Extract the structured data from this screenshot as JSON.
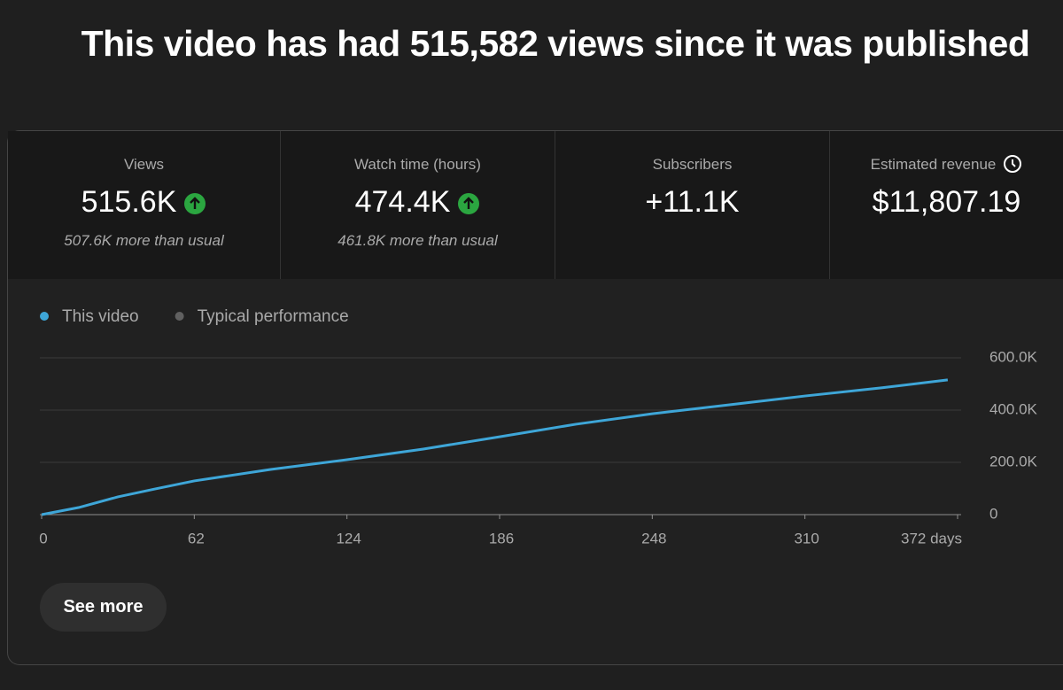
{
  "header": {
    "title": "This video has had 515,582 views since it was published"
  },
  "metrics": [
    {
      "label": "Views",
      "value": "515.6K",
      "note": "507.6K more than usual"
    },
    {
      "label": "Watch time (hours)",
      "value": "474.4K",
      "note": "461.8K more than usual"
    },
    {
      "label": "Subscribers",
      "value": "+11.1K"
    },
    {
      "label": "Estimated revenue",
      "value": "$11,807.19"
    }
  ],
  "chart_data": {
    "type": "line",
    "x": [
      0,
      15,
      31,
      46,
      62,
      93,
      124,
      155,
      186,
      217,
      248,
      279,
      310,
      341,
      368
    ],
    "series": [
      {
        "name": "This video",
        "color": "#3ea6d8",
        "values": [
          0,
          27000,
          68000,
          98000,
          129000,
          173000,
          210000,
          251000,
          298000,
          346000,
          386000,
          420000,
          454000,
          485000,
          515582
        ]
      },
      {
        "name": "Typical performance",
        "color": "#606060"
      }
    ],
    "xlim": [
      0,
      372
    ],
    "xticks": [
      0,
      62,
      124,
      186,
      248,
      310,
      {
        "value": 372,
        "label": "372 days"
      }
    ],
    "ylim": [
      0,
      600000
    ],
    "yticks": [
      0,
      {
        "value": 200000,
        "label": "200.0K"
      },
      {
        "value": 400000,
        "label": "400.0K"
      },
      {
        "value": 600000,
        "label": "600.0K"
      }
    ],
    "grid": true
  },
  "button": {
    "label": "See more"
  }
}
